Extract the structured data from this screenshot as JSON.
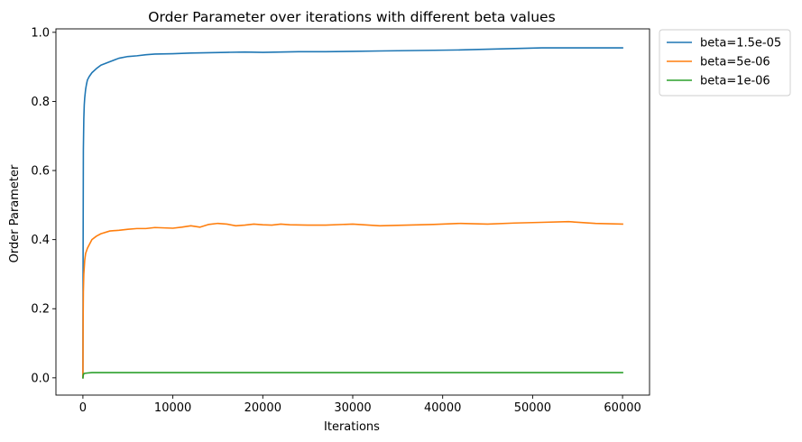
{
  "chart_data": {
    "type": "line",
    "title": "Order Parameter over iterations with different beta values",
    "xlabel": "Iterations",
    "ylabel": "Order Parameter",
    "xlim": [
      -3000,
      63000
    ],
    "ylim": [
      -0.05,
      1.01
    ],
    "xticks": [
      0,
      10000,
      20000,
      30000,
      40000,
      50000,
      60000
    ],
    "xtick_labels": [
      "0",
      "10000",
      "20000",
      "30000",
      "40000",
      "50000",
      "60000"
    ],
    "yticks": [
      0.0,
      0.2,
      0.4,
      0.6,
      0.8,
      1.0
    ],
    "ytick_labels": [
      "0.0",
      "0.2",
      "0.4",
      "0.6",
      "0.8",
      "1.0"
    ],
    "grid": false,
    "legend_position": "outside-top-right",
    "series": [
      {
        "name": "beta=1.5e-05",
        "color": "#1f77b4",
        "x": [
          0,
          20,
          50,
          100,
          150,
          200,
          300,
          400,
          500,
          700,
          1000,
          1500,
          2000,
          3000,
          4000,
          5000,
          6000,
          7000,
          8000,
          10000,
          12000,
          14000,
          16000,
          18000,
          20000,
          22000,
          24000,
          27000,
          30000,
          33000,
          36000,
          39000,
          42000,
          45000,
          48000,
          51000,
          54000,
          57000,
          60000
        ],
        "y": [
          0.0,
          0.35,
          0.66,
          0.75,
          0.79,
          0.81,
          0.835,
          0.85,
          0.862,
          0.872,
          0.883,
          0.895,
          0.905,
          0.915,
          0.925,
          0.93,
          0.932,
          0.935,
          0.937,
          0.938,
          0.94,
          0.941,
          0.942,
          0.943,
          0.942,
          0.943,
          0.944,
          0.944,
          0.945,
          0.946,
          0.947,
          0.948,
          0.949,
          0.951,
          0.953,
          0.955,
          0.955,
          0.955,
          0.955
        ]
      },
      {
        "name": "beta=5e-06",
        "color": "#ff7f0e",
        "x": [
          0,
          20,
          50,
          100,
          200,
          300,
          500,
          700,
          1000,
          1500,
          2000,
          3000,
          4000,
          5000,
          6000,
          7000,
          8000,
          9000,
          10000,
          11000,
          12000,
          13000,
          14000,
          15000,
          16000,
          17000,
          18000,
          19000,
          20000,
          21000,
          22000,
          23000,
          25000,
          27000,
          30000,
          33000,
          36000,
          39000,
          42000,
          45000,
          48000,
          51000,
          54000,
          57000,
          60000
        ],
        "y": [
          0.0,
          0.15,
          0.25,
          0.3,
          0.34,
          0.36,
          0.375,
          0.385,
          0.4,
          0.41,
          0.417,
          0.425,
          0.427,
          0.43,
          0.432,
          0.432,
          0.435,
          0.434,
          0.433,
          0.436,
          0.44,
          0.436,
          0.444,
          0.447,
          0.445,
          0.44,
          0.442,
          0.445,
          0.443,
          0.442,
          0.445,
          0.443,
          0.442,
          0.442,
          0.445,
          0.44,
          0.442,
          0.444,
          0.447,
          0.445,
          0.448,
          0.45,
          0.452,
          0.447,
          0.445
        ]
      },
      {
        "name": "beta=1e-06",
        "color": "#2ca02c",
        "x": [
          0,
          50,
          100,
          200,
          500,
          1000,
          2000,
          5000,
          10000,
          20000,
          30000,
          40000,
          50000,
          60000
        ],
        "y": [
          0.0,
          0.009,
          0.012,
          0.013,
          0.014,
          0.015,
          0.015,
          0.015,
          0.015,
          0.015,
          0.015,
          0.015,
          0.015,
          0.015
        ]
      }
    ]
  }
}
